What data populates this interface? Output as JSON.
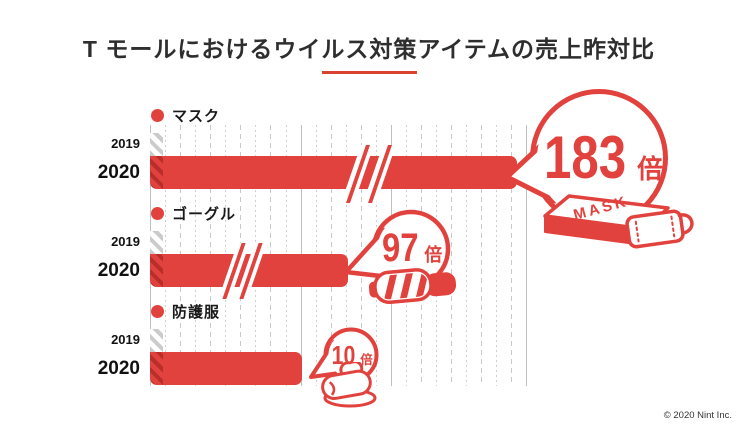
{
  "chart_data": {
    "type": "bar",
    "orientation": "horizontal",
    "title": "T モールにおけるウイルス対策アイテムの売上昨対比",
    "categories": [
      "マスク",
      "ゴーグル",
      "防護服"
    ],
    "years": [
      "2019",
      "2020"
    ],
    "series": [
      {
        "name": "2019",
        "values": [
          1,
          1,
          1
        ]
      },
      {
        "name": "2020",
        "values": [
          183,
          97,
          10
        ]
      }
    ],
    "unit_suffix": "倍",
    "value_labels": [
      "183倍",
      "97倍",
      "10倍"
    ],
    "axis_breaks_on_2020": [
      true,
      true,
      false
    ],
    "grid": true,
    "legend_position": "above-each-group",
    "accent_color": "#e2423d",
    "icons": [
      "mask-box-icon",
      "goggles-icon",
      "protective-suit-icon"
    ]
  },
  "footer": {
    "copyright": "© 2020 Nint Inc."
  }
}
